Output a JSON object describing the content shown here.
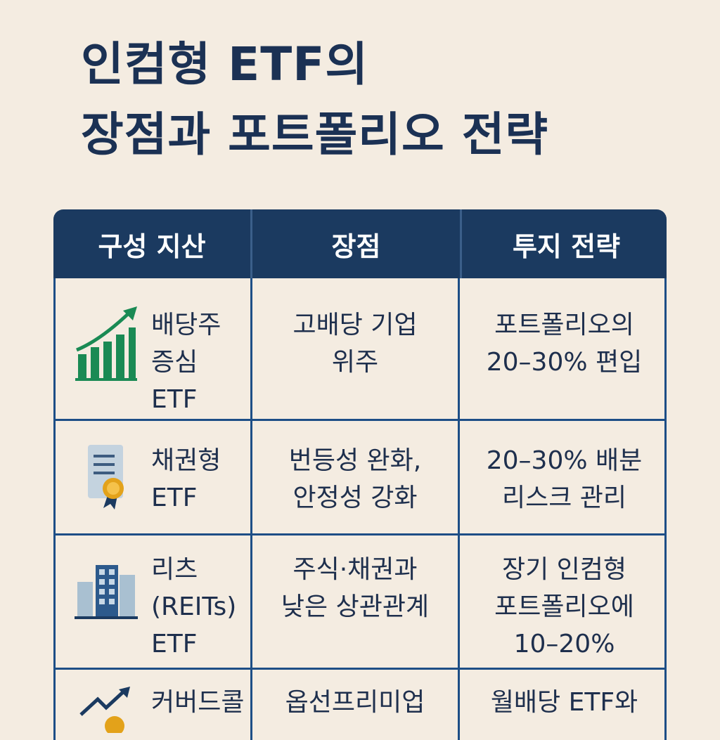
{
  "title": {
    "line1": "인컴형 ETF의",
    "line2": "장점과 포트폴리오 전략"
  },
  "table": {
    "headers": [
      "구성 지산",
      "장점",
      "투지 전략"
    ],
    "rows": [
      {
        "icon": "growth-chart-icon",
        "asset": "배당주\n증심\nETF",
        "advantage": "고배당 기업\n위주",
        "strategy": "포트폴리오의\n20–30% 편입"
      },
      {
        "icon": "bond-certificate-icon",
        "asset": "채권형\nETF",
        "advantage": "번등성 완화,\n안정성 강화",
        "strategy": "20–30% 배분\n리스크 관리"
      },
      {
        "icon": "buildings-icon",
        "asset": "리츠\n(REITs)\nETF",
        "advantage": "주식·채권과\n낮은 상관관계",
        "strategy": "장기 인컴형\n포트폴리오에\n10–20%"
      },
      {
        "icon": "rising-arrow-coin-icon",
        "asset": "커버드콜",
        "advantage": "옵선프리미업",
        "strategy": "월배당 ETF와"
      }
    ]
  },
  "colors": {
    "background": "#f4ece1",
    "header": "#1b3a60",
    "border": "#1d4e86",
    "green": "#1a8a54",
    "gold": "#e3a21a"
  }
}
